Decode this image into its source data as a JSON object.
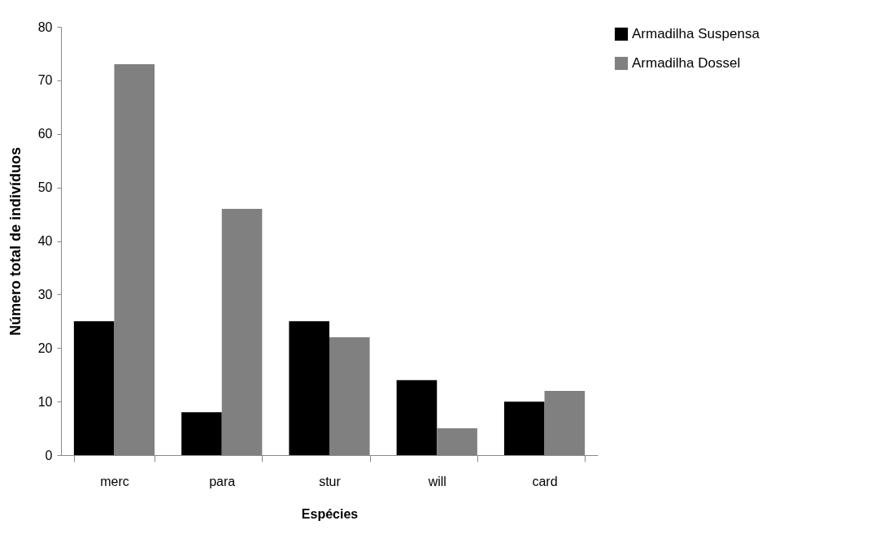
{
  "chart_data": {
    "type": "bar",
    "xlabel": "Espécies",
    "ylabel": "Número total de indivíduos",
    "categories": [
      "merc",
      "para",
      "stur",
      "will",
      "card"
    ],
    "series": [
      {
        "name": "Armadilha Suspensa",
        "color": "#000000",
        "values": [
          25,
          8,
          25,
          14,
          10
        ]
      },
      {
        "name": "Armadilha Dossel",
        "color": "#808080",
        "values": [
          73,
          46,
          22,
          5,
          12
        ]
      }
    ],
    "ylim": [
      0,
      80
    ],
    "yticks": [
      0,
      10,
      20,
      30,
      40,
      50,
      60,
      70,
      80
    ],
    "grid": false,
    "legend": "right"
  }
}
